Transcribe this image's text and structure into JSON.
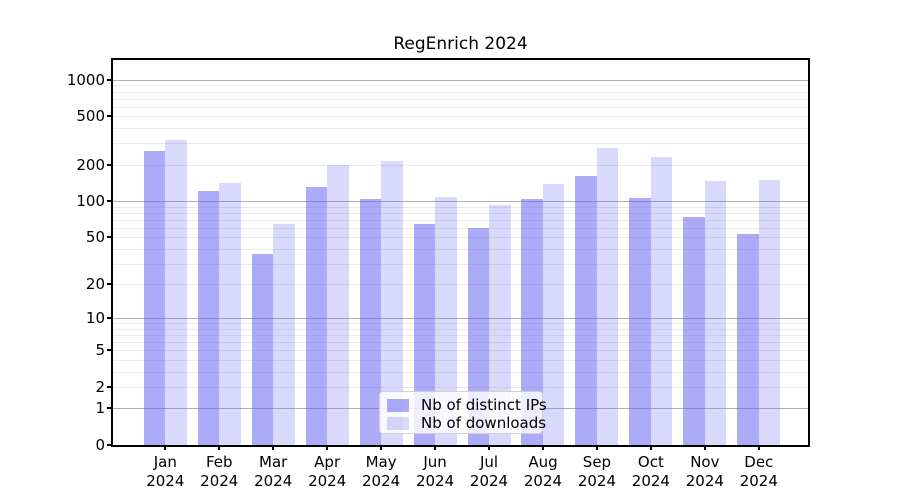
{
  "title": "RegEnrich 2024",
  "chart_data": {
    "type": "bar",
    "title": "RegEnrich 2024",
    "categories": [
      "Jan",
      "Feb",
      "Mar",
      "Apr",
      "May",
      "Jun",
      "Jul",
      "Aug",
      "Sep",
      "Oct",
      "Nov",
      "Dec"
    ],
    "category_year": "2024",
    "series": [
      {
        "name": "Nb of distinct IPs",
        "color": "rgba(102,102,240,0.55)",
        "values": [
          260,
          122,
          36,
          130,
          104,
          65,
          60,
          104,
          160,
          107,
          74,
          53
        ]
      },
      {
        "name": "Nb of downloads",
        "color": "rgba(102,102,240,0.25)",
        "values": [
          320,
          140,
          64,
          199,
          215,
          108,
          93,
          138,
          275,
          232,
          147,
          149
        ]
      }
    ],
    "yscale": "log1p",
    "yticks": [
      0,
      1,
      2,
      5,
      10,
      20,
      50,
      100,
      200,
      500,
      1000
    ],
    "ylim": [
      0,
      1450
    ],
    "xlabel": "",
    "ylabel": "",
    "grid": true,
    "legend_position": "lower center",
    "colors": {
      "major_grid": "#b0b0b0",
      "minor_grid": "#e9e9e9",
      "spine": "#000000",
      "legend_border": "#d0d0d0"
    }
  }
}
